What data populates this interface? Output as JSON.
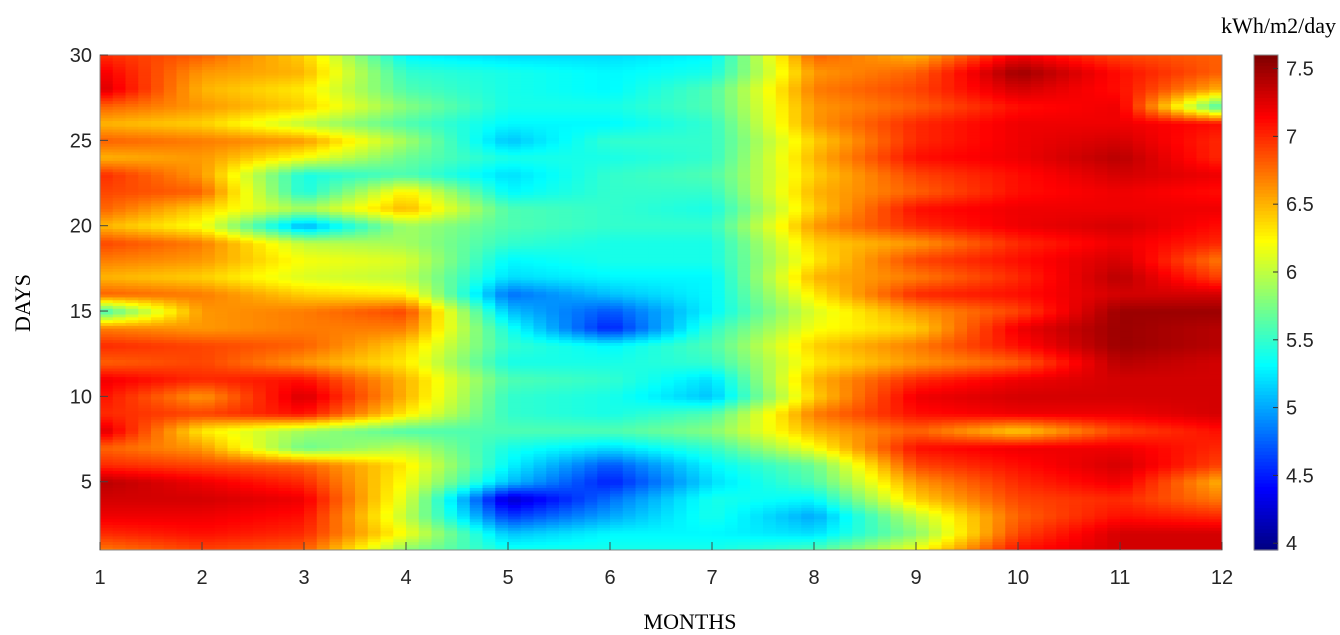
{
  "chart_data": {
    "type": "heatmap",
    "title": "",
    "xlabel": "MONTHS",
    "ylabel": "DAYS",
    "colorbar_label": "kWh/m2/day",
    "colormap": "jet",
    "x_ticks": [
      1,
      2,
      3,
      4,
      5,
      6,
      7,
      8,
      9,
      10,
      11,
      12
    ],
    "y_ticks": [
      5,
      10,
      15,
      20,
      25,
      30
    ],
    "colorbar_ticks": [
      4,
      4.5,
      5,
      5.5,
      6,
      6.5,
      7,
      7.5
    ],
    "xlim": [
      1,
      12
    ],
    "ylim": [
      1,
      30
    ],
    "clim": [
      3.95,
      7.6
    ],
    "months": [
      1,
      2,
      3,
      4,
      5,
      6,
      7,
      8,
      9,
      10,
      11,
      12
    ],
    "days": [
      1,
      2,
      3,
      4,
      5,
      6,
      7,
      8,
      9,
      10,
      11,
      12,
      13,
      14,
      15,
      16,
      17,
      18,
      19,
      20,
      21,
      22,
      23,
      24,
      25,
      26,
      27,
      28,
      29,
      30
    ],
    "values": [
      [
        6.7,
        6.9,
        6.8,
        5.8,
        5.4,
        5.4,
        5.4,
        5.6,
        6.2,
        7.1,
        7.3,
        7.3
      ],
      [
        7.0,
        7.1,
        7.0,
        6.2,
        5.1,
        5.3,
        5.3,
        5.2,
        5.8,
        6.9,
        7.3,
        7.3
      ],
      [
        7.2,
        7.2,
        7.1,
        6.0,
        4.6,
        5.0,
        5.4,
        5.0,
        6.0,
        6.8,
        7.1,
        7.0
      ],
      [
        7.3,
        7.3,
        7.2,
        6.1,
        4.2,
        4.8,
        5.4,
        5.3,
        6.4,
        6.9,
        7.0,
        6.7
      ],
      [
        7.4,
        7.2,
        7.0,
        6.2,
        5.1,
        4.5,
        5.2,
        5.6,
        6.6,
        7.0,
        7.2,
        6.5
      ],
      [
        7.0,
        6.9,
        6.8,
        6.3,
        5.3,
        4.7,
        5.3,
        5.7,
        6.9,
        7.1,
        7.3,
        6.9
      ],
      [
        6.8,
        6.6,
        5.7,
        6.0,
        5.4,
        5.2,
        5.5,
        6.2,
        7.1,
        7.2,
        7.2,
        7.0
      ],
      [
        7.3,
        6.3,
        5.9,
        5.6,
        5.6,
        5.6,
        5.8,
        6.5,
        6.8,
        6.4,
        6.9,
        7.1
      ],
      [
        7.0,
        6.9,
        7.1,
        6.3,
        5.5,
        5.4,
        5.6,
        6.7,
        7.1,
        7.2,
        7.2,
        7.3
      ],
      [
        7.1,
        6.6,
        7.3,
        6.5,
        5.5,
        5.4,
        5.1,
        6.4,
        7.2,
        7.3,
        7.3,
        7.3
      ],
      [
        7.2,
        7.0,
        7.1,
        6.5,
        5.6,
        5.5,
        5.2,
        6.5,
        7.0,
        7.2,
        7.3,
        7.3
      ],
      [
        6.8,
        6.9,
        6.6,
        6.3,
        5.4,
        5.4,
        5.5,
        6.3,
        6.6,
        6.8,
        7.4,
        7.3
      ],
      [
        7.0,
        6.9,
        6.8,
        6.4,
        5.5,
        5.3,
        5.6,
        6.4,
        6.7,
        7.1,
        7.5,
        7.4
      ],
      [
        6.7,
        6.6,
        6.7,
        6.7,
        5.4,
        4.5,
        5.5,
        6.2,
        6.4,
        7.2,
        7.5,
        7.4
      ],
      [
        5.5,
        6.6,
        6.7,
        6.9,
        5.1,
        4.7,
        5.3,
        6.1,
        6.6,
        6.9,
        7.5,
        7.5
      ],
      [
        6.8,
        6.7,
        6.4,
        6.3,
        4.8,
        5.1,
        5.3,
        6.3,
        7.0,
        7.1,
        7.3,
        7.3
      ],
      [
        6.5,
        6.4,
        6.1,
        6.0,
        5.2,
        5.3,
        5.3,
        6.5,
        6.7,
        7.0,
        7.4,
        6.9
      ],
      [
        6.7,
        6.6,
        6.2,
        6.1,
        5.3,
        5.4,
        5.4,
        6.3,
        6.9,
        7.1,
        7.3,
        6.7
      ],
      [
        6.9,
        6.7,
        6.0,
        5.9,
        5.5,
        5.4,
        5.4,
        6.4,
        6.6,
        7.0,
        7.2,
        7.0
      ],
      [
        6.5,
        6.2,
        5.0,
        5.9,
        5.6,
        5.5,
        5.5,
        6.6,
        7.0,
        7.2,
        7.3,
        7.1
      ],
      [
        6.8,
        6.4,
        5.9,
        6.5,
        5.6,
        5.5,
        5.4,
        6.4,
        7.1,
        7.2,
        7.2,
        7.2
      ],
      [
        6.9,
        6.8,
        5.4,
        6.3,
        5.3,
        5.5,
        5.5,
        6.5,
        6.8,
        7.1,
        7.2,
        7.1
      ],
      [
        7.0,
        6.6,
        5.4,
        5.6,
        5.2,
        5.5,
        5.6,
        6.4,
        6.9,
        7.1,
        7.3,
        7.2
      ],
      [
        6.5,
        6.6,
        6.2,
        5.7,
        5.4,
        5.4,
        5.5,
        6.5,
        7.1,
        7.2,
        7.4,
        7.0
      ],
      [
        6.8,
        6.7,
        6.6,
        5.9,
        5.1,
        5.5,
        5.5,
        6.4,
        7.0,
        7.2,
        7.3,
        7.0
      ],
      [
        6.5,
        6.4,
        6.0,
        5.6,
        5.3,
        5.3,
        5.5,
        6.6,
        7.0,
        7.2,
        7.2,
        7.1
      ],
      [
        6.8,
        6.6,
        6.4,
        5.8,
        5.4,
        5.4,
        5.6,
        6.6,
        6.8,
        7.1,
        7.2,
        5.5
      ],
      [
        7.3,
        6.5,
        6.3,
        5.6,
        5.4,
        5.3,
        5.6,
        6.7,
        6.9,
        7.3,
        7.1,
        6.5
      ],
      [
        7.2,
        6.6,
        6.5,
        5.5,
        5.4,
        5.3,
        5.4,
        6.6,
        6.8,
        7.5,
        7.1,
        6.8
      ],
      [
        7.0,
        6.8,
        6.4,
        5.3,
        5.2,
        5.2,
        5.3,
        6.8,
        6.5,
        7.2,
        6.9,
        6.8
      ]
    ]
  }
}
